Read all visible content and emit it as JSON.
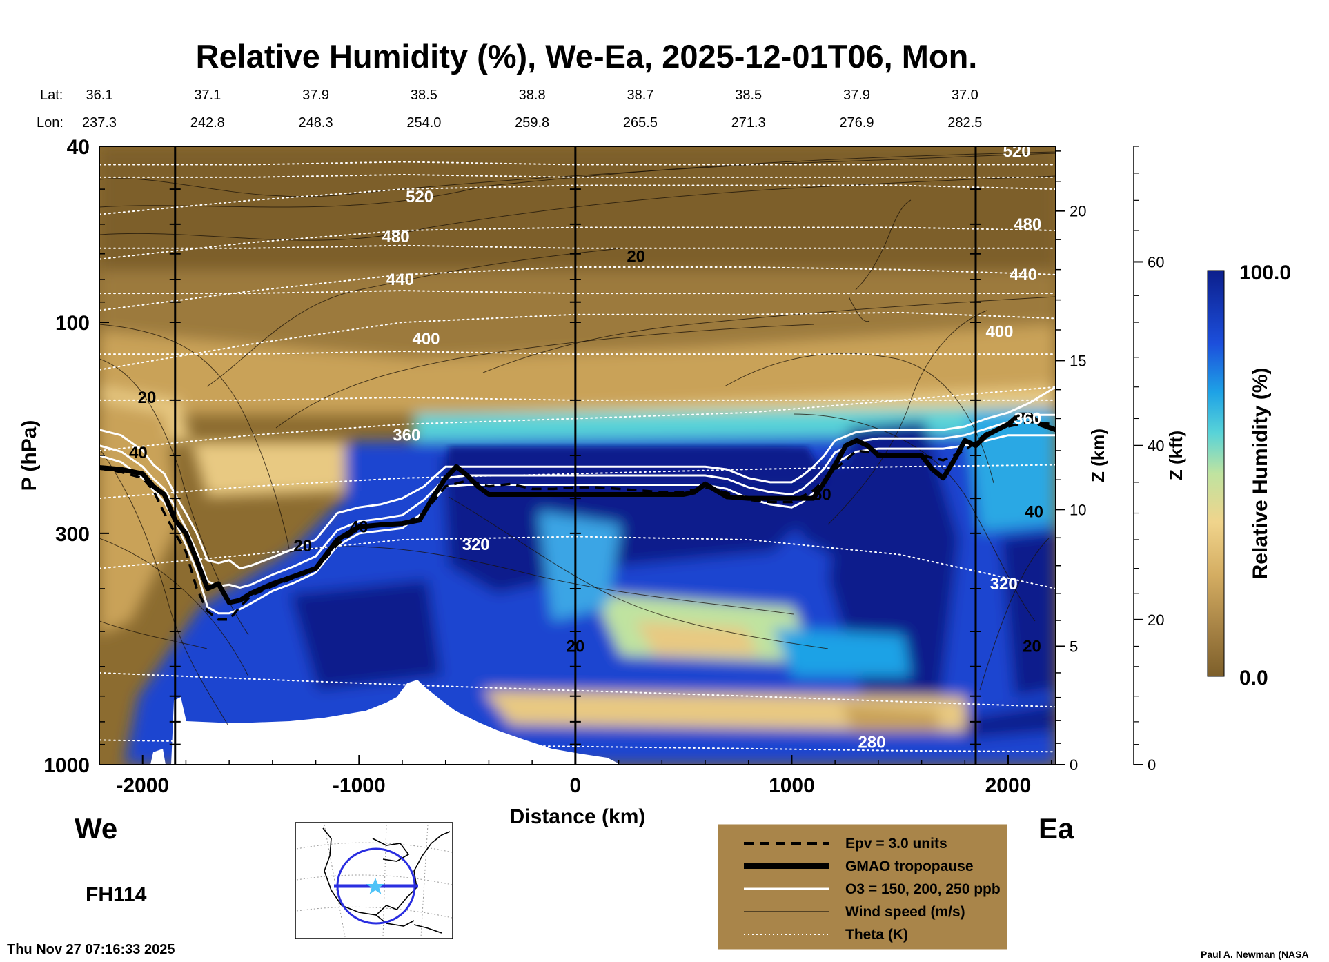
{
  "chart_data": {
    "type": "heatmap",
    "title": "Relative Humidity (%), We-Ea, 2025-12-01T06, Mon.",
    "xlabel": "Distance (km)",
    "ylabel": "P (hPa)",
    "y2label": "Z (km)",
    "y3label": "Z (kft)",
    "colorbar_label": "Relative Humidity (%)",
    "colorbar_max_label": "100.0",
    "colorbar_min_label": "0.0",
    "colorbar_range": [
      0,
      100
    ],
    "xlim": [
      -2200,
      2220
    ],
    "ylim": [
      1000,
      40
    ],
    "y_scale": "log",
    "x_ticks": [
      {
        "value": -2000,
        "label": "-2000"
      },
      {
        "value": -1000,
        "label": "-1000"
      },
      {
        "value": 0,
        "label": "0"
      },
      {
        "value": 1000,
        "label": "1000"
      },
      {
        "value": 2000,
        "label": "2000"
      }
    ],
    "p_ticks": [
      {
        "value": 40,
        "label": "40"
      },
      {
        "value": 100,
        "label": "100"
      },
      {
        "value": 300,
        "label": "300"
      },
      {
        "value": 1000,
        "label": "1000"
      }
    ],
    "z_km_ticks": [
      {
        "value": 0,
        "label": "0",
        "p": 1000
      },
      {
        "value": 5,
        "label": "5",
        "p": 540
      },
      {
        "value": 10,
        "label": "10",
        "p": 265
      },
      {
        "value": 15,
        "label": "15",
        "p": 122
      },
      {
        "value": 20,
        "label": "20",
        "p": 56
      }
    ],
    "z_kft_ticks": [
      {
        "value": 0,
        "label": "0",
        "p": 1000
      },
      {
        "value": 20,
        "label": "20",
        "p": 470
      },
      {
        "value": 40,
        "label": "40",
        "p": 190
      },
      {
        "value": 60,
        "label": "60",
        "p": 73
      }
    ],
    "lat_row_label": "Lat:",
    "lon_row_label": "Lon:",
    "geo_ticks": [
      {
        "x": -2200,
        "lat": "36.1",
        "lon": "237.3"
      },
      {
        "x": -1700,
        "lat": "37.1",
        "lon": "242.8"
      },
      {
        "x": -1200,
        "lat": "37.9",
        "lon": "248.3"
      },
      {
        "x": -700,
        "lat": "38.5",
        "lon": "254.0"
      },
      {
        "x": -200,
        "lat": "38.8",
        "lon": "259.8"
      },
      {
        "x": 300,
        "lat": "38.7",
        "lon": "265.5"
      },
      {
        "x": 800,
        "lat": "38.5",
        "lon": "271.3"
      },
      {
        "x": 1300,
        "lat": "37.9",
        "lon": "276.9"
      },
      {
        "x": 1800,
        "lat": "37.0",
        "lon": "282.5"
      }
    ],
    "vertical_markers_km": [
      -1850,
      0,
      1850
    ],
    "series": [
      {
        "name": "GMAO tropopause",
        "x": [
          -2200,
          -2100,
          -2000,
          -1950,
          -1900,
          -1850,
          -1800,
          -1750,
          -1700,
          -1650,
          -1600,
          -1550,
          -1500,
          -1400,
          -1300,
          -1200,
          -1100,
          -1000,
          -900,
          -800,
          -720,
          -650,
          -600,
          -550,
          -500,
          -450,
          -400,
          -300,
          -200,
          -100,
          0,
          100,
          200,
          300,
          400,
          500,
          550,
          600,
          650,
          700,
          800,
          900,
          1000,
          1100,
          1150,
          1200,
          1250,
          1300,
          1350,
          1400,
          1500,
          1600,
          1650,
          1700,
          1750,
          1800,
          1850,
          1900,
          1950,
          2000,
          2050,
          2100,
          2150,
          2220
        ],
        "p": [
          213,
          215,
          220,
          235,
          245,
          280,
          300,
          345,
          400,
          390,
          430,
          425,
          410,
          390,
          375,
          360,
          310,
          290,
          287,
          285,
          280,
          245,
          225,
          212,
          222,
          235,
          245,
          245,
          245,
          245,
          245,
          245,
          245,
          245,
          245,
          245,
          242,
          232,
          240,
          248,
          250,
          250,
          250,
          250,
          230,
          210,
          190,
          185,
          190,
          200,
          200,
          200,
          215,
          225,
          205,
          185,
          190,
          180,
          175,
          170,
          162,
          162,
          170,
          175
        ]
      },
      {
        "name": "Epv = 3.0 units",
        "x": [
          -2200,
          -2100,
          -2000,
          -1950,
          -1900,
          -1850,
          -1800,
          -1750,
          -1700,
          -1650,
          -1600,
          -1550,
          -1500,
          -1400,
          -1300,
          -1200,
          -1100,
          -1000,
          -900,
          -800,
          -700,
          -600,
          -500,
          -400,
          -300,
          -200,
          -100,
          0,
          100,
          200,
          300,
          400,
          500,
          600,
          700,
          800,
          900,
          1000,
          1100,
          1200,
          1300,
          1400,
          1500,
          1600,
          1700,
          1800,
          1900,
          2000,
          2100,
          2220
        ],
        "p": [
          214,
          218,
          225,
          240,
          270,
          300,
          330,
          400,
          450,
          470,
          470,
          440,
          415,
          395,
          378,
          362,
          318,
          292,
          288,
          287,
          270,
          235,
          228,
          235,
          232,
          238,
          238,
          236,
          236,
          238,
          240,
          242,
          242,
          236,
          243,
          252,
          255,
          255,
          240,
          215,
          195,
          198,
          200,
          200,
          205,
          195,
          178,
          172,
          168,
          170
        ]
      },
      {
        "name": "O3 = 150 ppb",
        "x": [
          -2200,
          -2100,
          -2000,
          -1950,
          -1900,
          -1850,
          -1800,
          -1750,
          -1700,
          -1650,
          -1600,
          -1550,
          -1500,
          -1400,
          -1300,
          -1200,
          -1100,
          -1000,
          -900,
          -800,
          -700,
          -600,
          -500,
          -400,
          -300,
          -200,
          -100,
          0,
          100,
          200,
          300,
          400,
          500,
          600,
          700,
          800,
          900,
          1000,
          1050,
          1100,
          1150,
          1200,
          1300,
          1400,
          1500,
          1600,
          1700,
          1800,
          1900,
          2000,
          2100,
          2220
        ],
        "p": [
          175,
          180,
          195,
          210,
          220,
          245,
          270,
          300,
          345,
          350,
          345,
          360,
          355,
          340,
          325,
          310,
          270,
          262,
          258,
          250,
          235,
          212,
          212,
          212,
          212,
          212,
          212,
          212,
          212,
          212,
          212,
          212,
          212,
          212,
          215,
          225,
          230,
          230,
          222,
          212,
          200,
          185,
          177,
          175,
          175,
          175,
          175,
          172,
          165,
          160,
          152,
          140
        ]
      },
      {
        "name": "O3 = 200 ppb",
        "x": [
          -2200,
          -2100,
          -2000,
          -1950,
          -1900,
          -1850,
          -1800,
          -1750,
          -1700,
          -1650,
          -1600,
          -1550,
          -1500,
          -1400,
          -1300,
          -1200,
          -1100,
          -1000,
          -900,
          -800,
          -700,
          -600,
          -500,
          -400,
          -300,
          -200,
          -100,
          0,
          100,
          200,
          300,
          400,
          500,
          600,
          700,
          800,
          900,
          1000,
          1050,
          1100,
          1150,
          1200,
          1300,
          1400,
          1500,
          1600,
          1700,
          1800,
          1900,
          2000,
          2100,
          2220
        ],
        "p": [
          190,
          196,
          212,
          226,
          238,
          262,
          292,
          330,
          385,
          395,
          392,
          398,
          392,
          372,
          356,
          338,
          295,
          282,
          278,
          273,
          252,
          225,
          222,
          222,
          222,
          222,
          222,
          222,
          222,
          222,
          222,
          222,
          222,
          222,
          226,
          236,
          242,
          245,
          238,
          227,
          214,
          197,
          186,
          183,
          183,
          183,
          183,
          180,
          174,
          168,
          162,
          162
        ]
      },
      {
        "name": "O3 = 250 ppb",
        "x": [
          -2200,
          -2100,
          -2000,
          -1950,
          -1900,
          -1850,
          -1800,
          -1750,
          -1700,
          -1650,
          -1600,
          -1550,
          -1500,
          -1400,
          -1300,
          -1200,
          -1100,
          -1000,
          -900,
          -800,
          -700,
          -600,
          -500,
          -400,
          -300,
          -200,
          -100,
          0,
          100,
          200,
          300,
          400,
          500,
          600,
          700,
          800,
          900,
          1000,
          1050,
          1100,
          1150,
          1200,
          1300,
          1400,
          1500,
          1600,
          1700,
          1800,
          1900,
          2000,
          2100,
          2220
        ],
        "p": [
          200,
          207,
          225,
          240,
          255,
          282,
          318,
          365,
          440,
          455,
          455,
          445,
          432,
          405,
          388,
          368,
          320,
          300,
          296,
          292,
          268,
          235,
          233,
          233,
          233,
          233,
          233,
          233,
          233,
          233,
          233,
          233,
          233,
          233,
          238,
          250,
          258,
          262,
          255,
          243,
          228,
          208,
          196,
          193,
          193,
          193,
          193,
          190,
          185,
          180,
          180,
          180
        ]
      }
    ],
    "theta_contours": [
      {
        "label": "280",
        "p": [
          880,
          890,
          900,
          910,
          920,
          930,
          935
        ]
      },
      {
        "label": "300",
        "p": [
          620,
          640,
          660,
          680,
          700,
          720,
          740
        ]
      },
      {
        "label": "320",
        "p": [
          360,
          335,
          310,
          305,
          310,
          335,
          400
        ]
      },
      {
        "label": "340",
        "p": [
          250,
          235,
          225,
          220,
          215,
          212,
          210
        ]
      },
      {
        "label": "360",
        "p": [
          195,
          180,
          170,
          165,
          160,
          150,
          140
        ]
      },
      {
        "label": "400",
        "p": [
          128,
          112,
          100,
          96,
          96,
          95,
          98
        ]
      },
      {
        "label": "440",
        "p": [
          94,
          85,
          78,
          75,
          75,
          76,
          78
        ]
      },
      {
        "label": "480",
        "p": [
          72,
          66,
          62,
          61,
          61,
          61,
          62
        ]
      },
      {
        "label": "520",
        "p": [
          57,
          53,
          50,
          49,
          49,
          49,
          50
        ]
      }
    ],
    "theta_x": [
      -2200,
      -1500,
      -800,
      0,
      800,
      1500,
      2220
    ],
    "theta_labels": [
      {
        "text": "520",
        "x": -720,
        "p": 52
      },
      {
        "text": "480",
        "x": -830,
        "p": 64
      },
      {
        "text": "440",
        "x": -810,
        "p": 80
      },
      {
        "text": "400",
        "x": -690,
        "p": 109
      },
      {
        "text": "360",
        "x": -780,
        "p": 180
      },
      {
        "text": "320",
        "x": -460,
        "p": 318
      },
      {
        "text": "280",
        "x": 1370,
        "p": 890
      },
      {
        "text": "520",
        "x": 2040,
        "p": 41
      },
      {
        "text": "480",
        "x": 2090,
        "p": 60
      },
      {
        "text": "440",
        "x": 2070,
        "p": 78
      },
      {
        "text": "400",
        "x": 1960,
        "p": 105
      },
      {
        "text": "360",
        "x": 2090,
        "p": 165
      },
      {
        "text": "320",
        "x": 1980,
        "p": 390
      }
    ],
    "wind_labels": [
      {
        "text": "20",
        "x": -1980,
        "p": 148
      },
      {
        "text": "40",
        "x": -2020,
        "p": 197
      },
      {
        "text": "20",
        "x": -1260,
        "p": 320
      },
      {
        "text": "40",
        "x": -1000,
        "p": 290
      },
      {
        "text": "20",
        "x": 280,
        "p": 71
      },
      {
        "text": "20",
        "x": 0,
        "p": 540
      },
      {
        "text": "60",
        "x": 1140,
        "p": 245
      },
      {
        "text": "40",
        "x": 2120,
        "p": 268
      },
      {
        "text": "20",
        "x": 2110,
        "p": 540
      }
    ],
    "region_labels": {
      "left": "We",
      "right": "Ea"
    },
    "forecast_hour": "FH114",
    "timestamp": "Thu Nov 27 07:16:33 2025",
    "credit": "Paul A. Newman (NASA",
    "legend_position": "bottom-center",
    "legend": [
      {
        "label": "Epv = 3.0 units",
        "style": "dashed-black"
      },
      {
        "label": "GMAO tropopause",
        "style": "thick-black"
      },
      {
        "label": "O3 = 150, 200, 250 ppb",
        "style": "white"
      },
      {
        "label": "Wind speed (m/s)",
        "style": "thin-black"
      },
      {
        "label": "Theta (K)",
        "style": "dotted-white"
      }
    ],
    "colors": {
      "dry": "#8a6a2e",
      "moist": "#0c1f8c",
      "legend_bg": "#a9854a",
      "axis": "#000000"
    }
  }
}
